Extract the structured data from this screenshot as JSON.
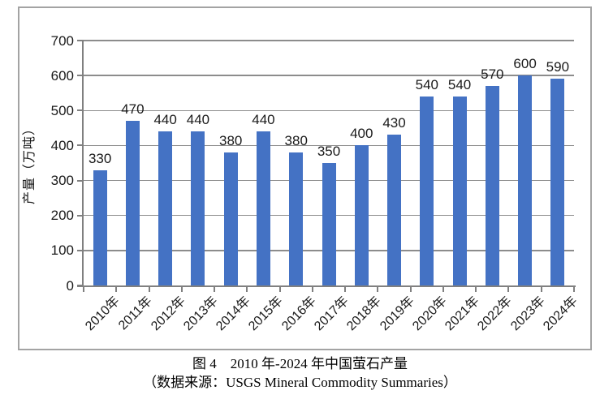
{
  "chart_data": {
    "type": "bar",
    "title": "图 4　2010 年-2024 年中国萤石产量",
    "categories": [
      "2010年",
      "2011年",
      "2012年",
      "2013年",
      "2014年",
      "2015年",
      "2016年",
      "2017年",
      "2018年",
      "2019年",
      "2020年",
      "2021年",
      "2022年",
      "2023年",
      "2024年"
    ],
    "values": [
      330,
      470,
      440,
      440,
      380,
      440,
      380,
      350,
      400,
      430,
      540,
      540,
      570,
      600,
      590
    ],
    "xlabel": "",
    "ylabel": "产量（万吨）",
    "ylim": [
      0,
      700
    ],
    "ytick_step": 100,
    "grid": true,
    "legend": false,
    "value_labels_shown": true,
    "bar_color": "#4472c4",
    "axis_color": "#808080",
    "gridline_color": "#8c8c8c",
    "frame_border_color": "#a3a3a3"
  },
  "caption": {
    "title": "图 4　2010 年-2024 年中国萤石产量",
    "source": "（数据来源：USGS Mineral Commodity Summaries）"
  }
}
